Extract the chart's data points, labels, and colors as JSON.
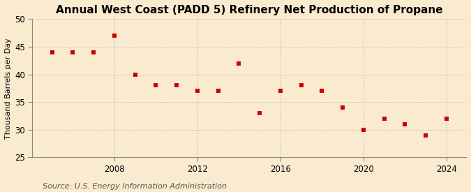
{
  "title": "Annual West Coast (PADD 5) Refinery Net Production of Propane",
  "ylabel": "Thousand Barrels per Day",
  "source": "Source: U.S. Energy Information Administration",
  "years": [
    2005,
    2006,
    2007,
    2008,
    2009,
    2010,
    2011,
    2012,
    2013,
    2014,
    2015,
    2016,
    2017,
    2018,
    2019,
    2020,
    2021,
    2022,
    2023,
    2024
  ],
  "values": [
    44.0,
    44.0,
    44.0,
    47.0,
    40.0,
    38.0,
    38.0,
    37.0,
    37.0,
    42.0,
    33.0,
    37.0,
    38.0,
    37.0,
    34.0,
    30.0,
    32.0,
    31.0,
    29.0,
    32.0
  ],
  "ylim": [
    25,
    50
  ],
  "yticks": [
    25,
    30,
    35,
    40,
    45,
    50
  ],
  "xticks": [
    2008,
    2012,
    2016,
    2020,
    2024
  ],
  "marker_color": "#cc0000",
  "marker": "s",
  "marker_size": 16,
  "background_color": "#faebd0",
  "grid_color": "#aaaaaa",
  "title_fontsize": 11,
  "label_fontsize": 8,
  "tick_fontsize": 8.5,
  "source_fontsize": 8
}
